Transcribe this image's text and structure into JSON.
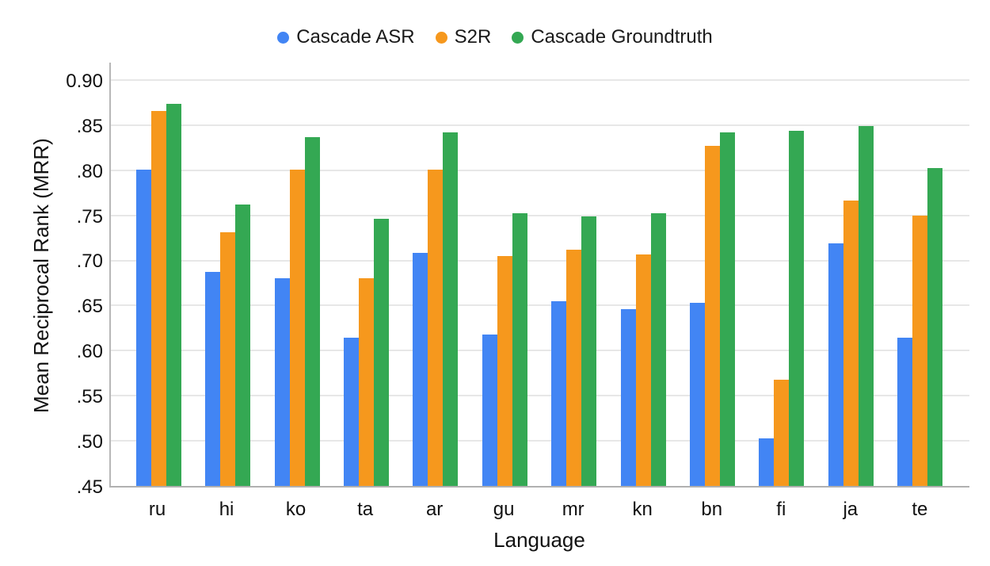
{
  "legend": [
    {
      "label": "Cascade ASR",
      "color": "#4285F4"
    },
    {
      "label": "S2R",
      "color": "#F6981D"
    },
    {
      "label": "Cascade Groundtruth",
      "color": "#34A853"
    }
  ],
  "colors": {
    "blue": "#4285F4",
    "orange": "#F6981D",
    "green": "#34A853",
    "gridline": "#e7e7e7",
    "axis_line": "#b0b0b0",
    "text": "#111111"
  },
  "chart_data": {
    "type": "bar",
    "title": "",
    "xlabel": "Language",
    "ylabel": "Mean Reciprocal Rank (MRR)",
    "categories": [
      "ru",
      "hi",
      "ko",
      "ta",
      "ar",
      "gu",
      "mr",
      "kn",
      "bn",
      "fi",
      "ja",
      "te"
    ],
    "series": [
      {
        "name": "Cascade ASR",
        "color": "#4285F4",
        "values": [
          0.801,
          0.687,
          0.68,
          0.614,
          0.708,
          0.618,
          0.655,
          0.646,
          0.653,
          0.503,
          0.719,
          0.614
        ]
      },
      {
        "name": "S2R",
        "color": "#F6981D",
        "values": [
          0.866,
          0.731,
          0.801,
          0.68,
          0.801,
          0.705,
          0.712,
          0.707,
          0.827,
          0.568,
          0.766,
          0.75
        ]
      },
      {
        "name": "Cascade Groundtruth",
        "color": "#34A853",
        "values": [
          0.874,
          0.762,
          0.837,
          0.746,
          0.842,
          0.752,
          0.749,
          0.752,
          0.842,
          0.844,
          0.849,
          0.802
        ]
      }
    ],
    "ylim": [
      0.45,
      0.921
    ],
    "yticks": [
      {
        "value": 0.9,
        "label": "0.90"
      },
      {
        "value": 0.85,
        "label": ".85"
      },
      {
        "value": 0.8,
        "label": ".80"
      },
      {
        "value": 0.75,
        "label": ".75"
      },
      {
        "value": 0.7,
        "label": ".70"
      },
      {
        "value": 0.65,
        "label": ".65"
      },
      {
        "value": 0.6,
        "label": ".60"
      },
      {
        "value": 0.55,
        "label": ".55"
      },
      {
        "value": 0.5,
        "label": ".50"
      },
      {
        "value": 0.45,
        "label": ".45"
      }
    ],
    "grid": "horizontal",
    "legend_position": "top"
  }
}
